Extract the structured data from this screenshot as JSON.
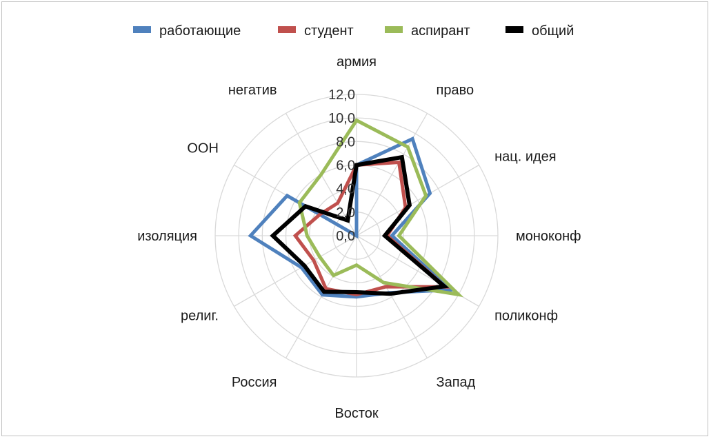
{
  "chart_data": {
    "type": "radar",
    "categories": [
      "армия",
      "право",
      "нац. идея",
      "моноконф",
      "поликонф",
      "Запад",
      "Восток",
      "Россия",
      "религ.",
      "изоляция",
      "ООН",
      "негатив"
    ],
    "rticks": [
      "0,0",
      "2,0",
      "4,0",
      "6,0",
      "8,0",
      "10,0",
      "12,0"
    ],
    "rlim": [
      0,
      12
    ],
    "grid": true,
    "legend_position": "top",
    "series": [
      {
        "name": "работающие",
        "color": "#4f81bd",
        "values": [
          6.0,
          9.5,
          7.2,
          3.0,
          9.2,
          5.6,
          5.2,
          5.8,
          5.4,
          9.0,
          6.8,
          0.0
        ]
      },
      {
        "name": "студент",
        "color": "#c0504d",
        "values": [
          6.0,
          7.2,
          4.8,
          2.6,
          8.7,
          5.0,
          5.0,
          5.2,
          4.2,
          5.2,
          3.6,
          3.2
        ]
      },
      {
        "name": "аспирант",
        "color": "#9bbb59",
        "values": [
          9.8,
          8.7,
          6.8,
          3.6,
          10.0,
          4.6,
          2.5,
          3.9,
          3.6,
          4.2,
          5.6,
          6.0
        ]
      },
      {
        "name": "общий",
        "color": "#000000",
        "values": [
          6.0,
          7.7,
          5.2,
          2.4,
          8.6,
          5.7,
          4.8,
          5.5,
          5.1,
          7.1,
          5.0,
          1.5
        ]
      }
    ]
  }
}
